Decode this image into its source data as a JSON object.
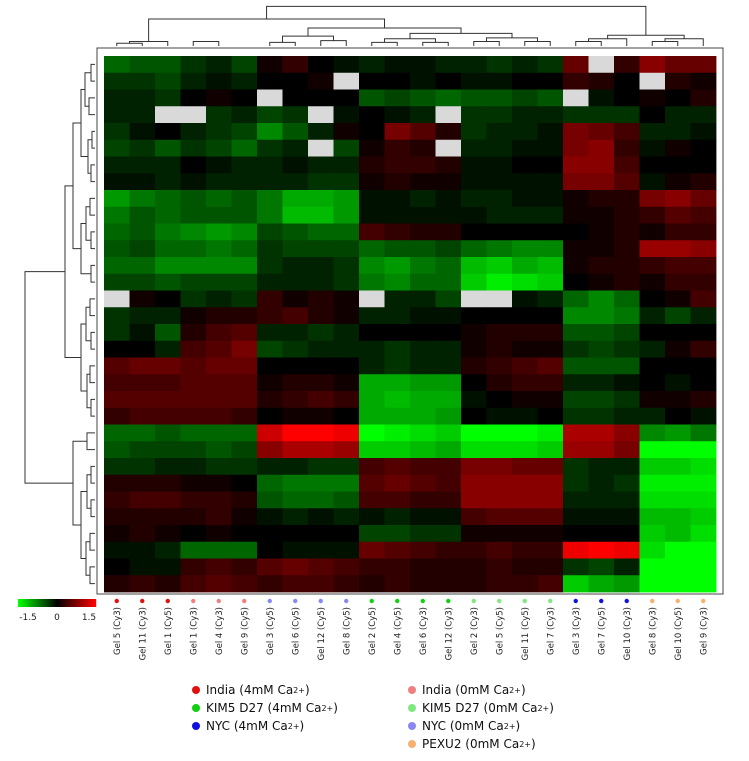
{
  "chart_data": {
    "type": "heatmap",
    "color_scale": {
      "low_label": "-1.5",
      "mid_label": "0",
      "high_label": "1.5",
      "low_color": "#00ff00",
      "mid_color": "#000000",
      "high_color": "#ff0000",
      "missing_color": "#d9d9d9"
    },
    "columns": [
      {
        "label": "Gel 5 (Cy3)",
        "group": "india4"
      },
      {
        "label": "Gel 11 (Cy3)",
        "group": "india4"
      },
      {
        "label": "Gel 1 (Cy5)",
        "group": "india4"
      },
      {
        "label": "Gel 1 (Cy3)",
        "group": "india0"
      },
      {
        "label": "Gel 4 (Cy3)",
        "group": "india0"
      },
      {
        "label": "Gel 9 (Cy5)",
        "group": "india0"
      },
      {
        "label": "Gel 3 (Cy5)",
        "group": "nyc0"
      },
      {
        "label": "Gel 6 (Cy5)",
        "group": "nyc0"
      },
      {
        "label": "Gel 12 (Cy5)",
        "group": "nyc0"
      },
      {
        "label": "Gel 8 (Cy5)",
        "group": "nyc0"
      },
      {
        "label": "Gel 2 (Cy5)",
        "group": "kim4"
      },
      {
        "label": "Gel 4 (Cy5)",
        "group": "kim4"
      },
      {
        "label": "Gel 6 (Cy3)",
        "group": "kim4"
      },
      {
        "label": "Gel 12 (Cy3)",
        "group": "kim4"
      },
      {
        "label": "Gel 2 (Cy3)",
        "group": "kim0"
      },
      {
        "label": "Gel 5 (Cy5)",
        "group": "kim0"
      },
      {
        "label": "Gel 11 (Cy5)",
        "group": "kim0"
      },
      {
        "label": "Gel 7 (Cy3)",
        "group": "kim0"
      },
      {
        "label": "Gel 3 (Cy3)",
        "group": "nyc4"
      },
      {
        "label": "Gel 7 (Cy5)",
        "group": "nyc4"
      },
      {
        "label": "Gel 10 (Cy3)",
        "group": "nyc4"
      },
      {
        "label": "Gel 8 (Cy3)",
        "group": "pexu0"
      },
      {
        "label": "Gel 10 (Cy5)",
        "group": "pexu0"
      },
      {
        "label": "Gel 9 (Cy3)",
        "group": "pexu0"
      }
    ],
    "values": [
      [
        -0.6,
        -0.5,
        -0.5,
        -0.3,
        -0.2,
        -0.4,
        0.1,
        0.3,
        0,
        -0.1,
        -0.2,
        -0.1,
        -0.1,
        -0.2,
        -0.2,
        -0.3,
        -0.2,
        -0.3,
        0.6,
        null,
        0.3,
        0.8,
        0.6,
        0.6
      ],
      [
        -0.3,
        -0.3,
        -0.4,
        -0.2,
        -0.1,
        -0.2,
        0,
        0,
        0.1,
        null,
        0,
        0,
        -0.1,
        0,
        -0.1,
        -0.1,
        0,
        0,
        0.3,
        0.2,
        0,
        null,
        0.2,
        0.1
      ],
      [
        -0.2,
        -0.2,
        -0.3,
        0,
        0.1,
        0,
        null,
        0,
        0,
        0,
        -0.5,
        -0.4,
        -0.5,
        -0.6,
        -0.5,
        -0.5,
        -0.4,
        -0.5,
        null,
        -0.1,
        0,
        0.1,
        0,
        0.2
      ],
      [
        -0.2,
        -0.2,
        null,
        null,
        -0.3,
        -0.2,
        -0.4,
        -0.3,
        null,
        -0.1,
        0,
        -0.1,
        -0.2,
        null,
        -0.3,
        -0.3,
        -0.2,
        -0.2,
        -0.3,
        -0.3,
        -0.3,
        0,
        -0.2,
        -0.2
      ],
      [
        -0.3,
        -0.1,
        0,
        -0.2,
        -0.3,
        -0.4,
        -0.8,
        -0.5,
        -0.2,
        0.1,
        0,
        0.7,
        0.5,
        0.2,
        -0.3,
        -0.2,
        -0.2,
        -0.1,
        0.7,
        0.6,
        0.4,
        -0.2,
        -0.2,
        -0.1
      ],
      [
        -0.4,
        -0.3,
        -0.5,
        -0.3,
        -0.4,
        -0.6,
        -0.3,
        -0.2,
        null,
        -0.4,
        0.1,
        0.3,
        0.2,
        null,
        -0.2,
        -0.2,
        -0.1,
        -0.1,
        0.7,
        0.8,
        0.3,
        -0.1,
        0.1,
        0
      ],
      [
        -0.2,
        -0.2,
        -0.2,
        0,
        -0.1,
        -0.2,
        -0.2,
        -0.1,
        -0.2,
        -0.2,
        0.2,
        0.3,
        0.3,
        0.2,
        -0.1,
        -0.1,
        0,
        0,
        0.8,
        0.8,
        0.4,
        0,
        0,
        0
      ],
      [
        -0.1,
        -0.1,
        -0.2,
        -0.1,
        -0.2,
        -0.2,
        -0.2,
        -0.2,
        -0.3,
        -0.3,
        0.1,
        0.2,
        0.1,
        0.1,
        -0.1,
        -0.1,
        -0.1,
        -0.1,
        0.7,
        0.7,
        0.5,
        -0.1,
        0.1,
        0.2
      ],
      [
        -0.9,
        -0.7,
        -0.6,
        -0.5,
        -0.6,
        -0.5,
        -0.7,
        -1,
        -1,
        -0.9,
        -0.1,
        -0.1,
        -0.2,
        -0.1,
        -0.2,
        -0.2,
        -0.1,
        -0.1,
        0.1,
        0.2,
        0.2,
        0.7,
        0.8,
        0.6
      ],
      [
        -0.7,
        -0.5,
        -0.6,
        -0.5,
        -0.5,
        -0.5,
        -0.7,
        -1.1,
        -1.1,
        -0.9,
        -0.1,
        -0.1,
        -0.1,
        -0.1,
        -0.1,
        -0.2,
        -0.2,
        -0.2,
        0.1,
        0.1,
        0.2,
        0.3,
        0.5,
        0.4
      ],
      [
        -0.6,
        -0.5,
        -0.7,
        -0.8,
        -0.9,
        -0.8,
        -0.4,
        -0.5,
        -0.6,
        -0.6,
        0.4,
        0.3,
        0.2,
        0.2,
        0,
        0,
        0,
        0,
        0,
        0.1,
        0.2,
        0.1,
        0.3,
        0.3
      ],
      [
        -0.5,
        -0.4,
        -0.6,
        -0.6,
        -0.7,
        -0.6,
        -0.3,
        -0.4,
        -0.4,
        -0.4,
        -0.6,
        -0.5,
        -0.5,
        -0.4,
        -0.6,
        -0.7,
        -0.8,
        -0.8,
        0.1,
        0.1,
        0.2,
        0.9,
        0.9,
        0.8
      ],
      [
        -0.6,
        -0.6,
        -0.8,
        -0.8,
        -0.8,
        -0.8,
        -0.3,
        -0.2,
        -0.2,
        -0.3,
        -0.8,
        -0.9,
        -0.7,
        -0.6,
        -1.1,
        -1.2,
        -1,
        -1.1,
        0.1,
        0.2,
        0.2,
        0.3,
        0.4,
        0.4
      ],
      [
        -0.4,
        -0.4,
        -0.5,
        -0.4,
        -0.4,
        -0.4,
        -0.2,
        -0.2,
        -0.2,
        -0.3,
        -0.7,
        -0.8,
        -0.6,
        -0.6,
        -1.2,
        -1.4,
        -1.3,
        -1.2,
        0,
        0.1,
        0.2,
        0.1,
        0.3,
        0.3
      ],
      [
        null,
        0.1,
        0,
        -0.3,
        -0.2,
        -0.3,
        0.3,
        0.1,
        0.2,
        0.1,
        null,
        -0.2,
        -0.2,
        -0.4,
        null,
        null,
        -0.1,
        -0.2,
        -0.6,
        -0.8,
        -0.6,
        0,
        0.1,
        0.4
      ],
      [
        -0.3,
        -0.2,
        -0.2,
        0.1,
        0.2,
        0.2,
        0.3,
        0.4,
        0.2,
        0.1,
        -0.2,
        -0.2,
        -0.1,
        -0.1,
        0,
        0,
        0,
        0,
        -0.8,
        -0.8,
        -0.7,
        -0.2,
        -0.4,
        -0.2
      ],
      [
        -0.3,
        -0.1,
        -0.5,
        0.2,
        0.4,
        0.5,
        -0.2,
        -0.2,
        -0.3,
        -0.2,
        0,
        0,
        0,
        0,
        0.1,
        0.2,
        0.2,
        0.2,
        -0.5,
        -0.5,
        -0.4,
        0,
        0,
        0
      ],
      [
        0,
        0,
        -0.2,
        0.4,
        0.5,
        0.7,
        -0.4,
        -0.3,
        -0.2,
        -0.2,
        -0.2,
        -0.3,
        -0.2,
        -0.2,
        0.1,
        0.2,
        0.1,
        0.1,
        -0.3,
        -0.4,
        -0.3,
        -0.2,
        0.1,
        0.3
      ],
      [
        0.5,
        0.6,
        0.6,
        0.5,
        0.6,
        0.6,
        0,
        0,
        0,
        0,
        -0.2,
        -0.3,
        -0.2,
        -0.2,
        0.2,
        0.3,
        0.4,
        0.5,
        -0.5,
        -0.5,
        -0.5,
        0,
        0,
        0
      ],
      [
        0.4,
        0.4,
        0.4,
        0.5,
        0.5,
        0.5,
        0.1,
        0.2,
        0.2,
        0.1,
        -1,
        -1,
        -0.9,
        -0.9,
        0,
        0.2,
        0.3,
        0.3,
        -0.2,
        -0.2,
        -0.1,
        0,
        -0.1,
        0
      ],
      [
        0.5,
        0.5,
        0.5,
        0.5,
        0.5,
        0.5,
        0.2,
        0.3,
        0.4,
        0.3,
        -1,
        -1.1,
        -1,
        -1,
        -0.1,
        0,
        0.1,
        0.1,
        -0.4,
        -0.4,
        -0.3,
        0.1,
        0.1,
        0.2
      ],
      [
        0.3,
        0.4,
        0.4,
        0.4,
        0.4,
        0.3,
        0,
        0.1,
        0.1,
        0,
        -1,
        -1,
        -1,
        -0.9,
        0,
        -0.1,
        -0.1,
        0,
        -0.3,
        -0.3,
        -0.2,
        -0.2,
        0,
        -0.1
      ],
      [
        -0.6,
        -0.6,
        -0.5,
        -0.6,
        -0.6,
        -0.6,
        1.2,
        1.5,
        1.5,
        1.4,
        -1.5,
        -1.4,
        -1.3,
        -1.2,
        -1.5,
        -1.5,
        -1.5,
        -1.4,
        1,
        1,
        0.8,
        -0.8,
        -0.9,
        -0.7
      ],
      [
        -0.5,
        -0.4,
        -0.4,
        -0.4,
        -0.5,
        -0.4,
        0.8,
        1,
        1,
        0.9,
        -1.2,
        -1.2,
        -1.1,
        -1,
        -1.3,
        -1.3,
        -1.3,
        -1.2,
        0.9,
        0.9,
        0.7,
        -1.5,
        -1.5,
        -1.5
      ],
      [
        -0.3,
        -0.3,
        -0.2,
        -0.2,
        -0.3,
        -0.3,
        -0.2,
        -0.2,
        -0.3,
        -0.3,
        0.4,
        0.5,
        0.4,
        0.4,
        0.7,
        0.7,
        0.6,
        0.6,
        -0.3,
        -0.2,
        -0.2,
        -1.2,
        -1.2,
        -1.3
      ],
      [
        0.2,
        0.2,
        0.2,
        0.1,
        0.1,
        0,
        -0.6,
        -0.7,
        -0.7,
        -0.7,
        0.5,
        0.6,
        0.5,
        0.4,
        0.8,
        0.8,
        0.8,
        0.8,
        -0.3,
        -0.2,
        -0.3,
        -1.4,
        -1.4,
        -1.4
      ],
      [
        0.3,
        0.4,
        0.4,
        0.3,
        0.3,
        0.2,
        -0.5,
        -0.6,
        -0.6,
        -0.5,
        0.4,
        0.4,
        0.3,
        0.3,
        0.8,
        0.8,
        0.8,
        0.8,
        -0.2,
        -0.2,
        -0.2,
        -1.3,
        -1.3,
        -1.3
      ],
      [
        0.2,
        0.2,
        0.2,
        0.2,
        0.3,
        0.1,
        -0.1,
        -0.2,
        -0.1,
        -0.2,
        -0.1,
        -0.2,
        -0.1,
        -0.1,
        0.4,
        0.5,
        0.5,
        0.5,
        -0.1,
        -0.1,
        -0.1,
        -1.1,
        -1.1,
        -1.2
      ],
      [
        0.1,
        0.2,
        0.1,
        0,
        0.1,
        0,
        0,
        0,
        0,
        0,
        -0.4,
        -0.4,
        -0.3,
        -0.3,
        0.1,
        0.1,
        0.1,
        0.1,
        0,
        0,
        0,
        -1.2,
        -1.1,
        -1.3
      ],
      [
        -0.1,
        -0.1,
        -0.2,
        -0.6,
        -0.6,
        -0.6,
        0,
        -0.1,
        -0.1,
        -0.1,
        0.6,
        0.5,
        0.4,
        0.3,
        0.3,
        0.4,
        0.3,
        0.3,
        1.4,
        1.5,
        1.4,
        -1.3,
        -1.5,
        -1.5
      ],
      [
        0,
        -0.1,
        -0.1,
        0.3,
        0.4,
        0.3,
        0.5,
        0.6,
        0.5,
        0.4,
        0.3,
        0.3,
        0.2,
        0.2,
        0.2,
        0.3,
        0.2,
        0.2,
        -0.3,
        -0.4,
        -0.2,
        -1.5,
        -1.5,
        -1.5
      ],
      [
        0.2,
        0.3,
        0.2,
        0.4,
        0.5,
        0.4,
        0.3,
        0.4,
        0.4,
        0.3,
        0.2,
        0.3,
        0.2,
        0.2,
        0.2,
        0.3,
        0.3,
        0.4,
        -1.2,
        -1,
        -0.9,
        -1.5,
        -1.5,
        -1.5
      ]
    ],
    "legend": [
      {
        "label": "India (4mM Ca",
        "sup": "2+",
        "close": ")",
        "color": "#e01010"
      },
      {
        "label": "India (0mM Ca",
        "sup": "2+",
        "close": ")",
        "color": "#f08080"
      },
      {
        "label": "KIM5 D27 (4mM Ca",
        "sup": "2+",
        "close": ")",
        "color": "#10d010"
      },
      {
        "label": "KIM5 D27 (0mM Ca",
        "sup": "2+",
        "close": ")",
        "color": "#80e880"
      },
      {
        "label": "NYC (4mM Ca",
        "sup": "2+",
        "close": ")",
        "color": "#1010e0"
      },
      {
        "label": "NYC (0mM Ca",
        "sup": "2+",
        "close": ")",
        "color": "#8888f0"
      },
      {
        "label": "PEXU2 (0mM Ca",
        "sup": "2+",
        "close": ")",
        "color": "#f8b070"
      }
    ],
    "group_colors": {
      "india4": "#e01010",
      "india0": "#f08080",
      "kim4": "#10d010",
      "kim0": "#80e880",
      "nyc4": "#1010e0",
      "nyc0": "#8888f0",
      "pexu0": "#f8b070"
    }
  }
}
